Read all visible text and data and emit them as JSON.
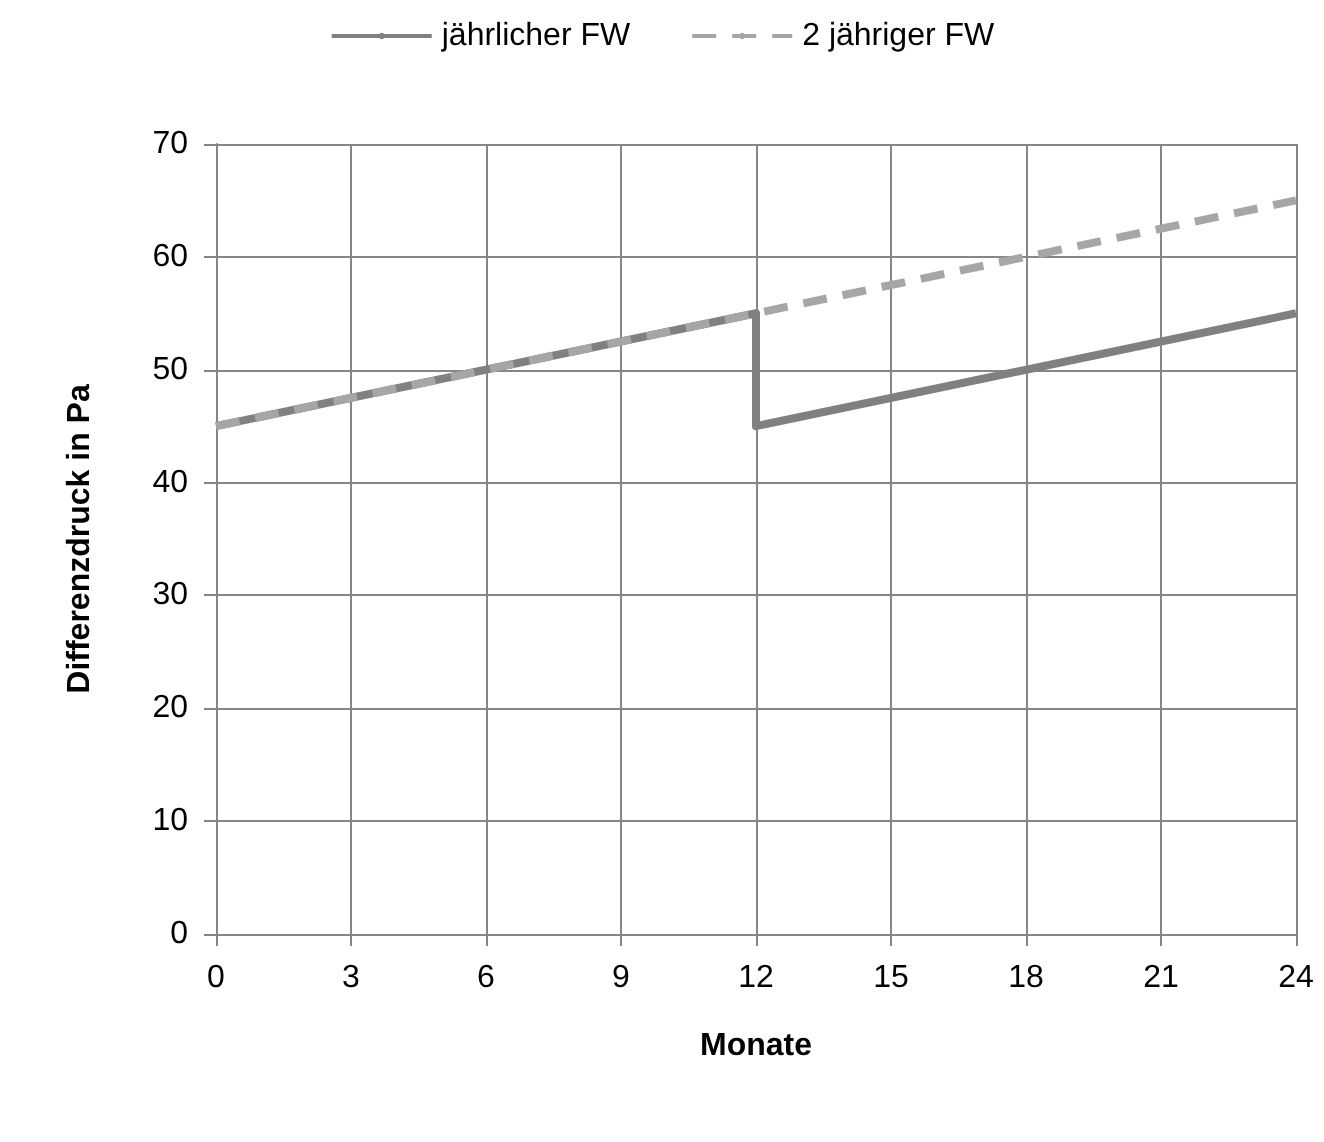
{
  "chart_data": {
    "type": "line",
    "xlabel": "Monate",
    "ylabel": "Differenzdruck in Pa",
    "series": [
      {
        "name": "jährlicher FW",
        "color": "#808080",
        "x": [
          0,
          12,
          12,
          24
        ],
        "values": [
          45,
          55,
          45,
          55
        ],
        "line_style": "solid"
      },
      {
        "name": "2 jähriger FW",
        "color": "#a6a6a6",
        "x": [
          0,
          24
        ],
        "values": [
          45,
          65
        ],
        "line_style": "dashed"
      }
    ],
    "xlim": [
      0,
      24
    ],
    "xticks": [
      0,
      3,
      6,
      9,
      12,
      15,
      18,
      21,
      24
    ],
    "ylim": [
      0,
      70
    ],
    "yticks": [
      0,
      10,
      20,
      30,
      40,
      50,
      60,
      70
    ],
    "grid": true,
    "legend": "top",
    "marker": "none"
  }
}
